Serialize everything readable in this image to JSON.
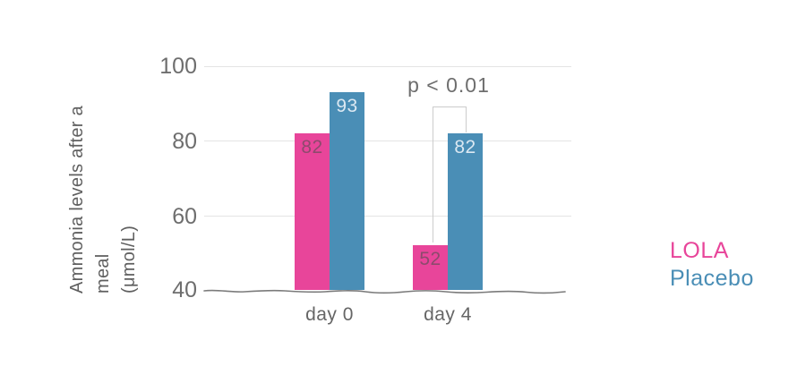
{
  "chart_data": {
    "type": "bar",
    "title": "",
    "categories": [
      "day 0",
      "day 4"
    ],
    "series": [
      {
        "name": "LOLA",
        "values": [
          82,
          52
        ],
        "color": "#e8459a",
        "value_label_color": "#8d4a6d"
      },
      {
        "name": "Placebo",
        "values": [
          93,
          82
        ],
        "color": "#4a8eb6",
        "value_label_color": "#dbe8f2"
      }
    ],
    "ylabel": "Ammonia levels after a meal (μmol/L)",
    "ylabel_lines": [
      "Ammonia levels after a meal",
      "(μmol/L)"
    ],
    "yticks": [
      "100",
      "80",
      "60",
      "40"
    ],
    "ylim": [
      40,
      100
    ],
    "grid": "horizontal-light",
    "legend_position": "right-middle",
    "annotation": {
      "text": "p < 0.01",
      "between": [
        "LOLA day 4",
        "Placebo day 4"
      ]
    },
    "colors": {
      "axis_text": "#6e6e6e",
      "y_title_text": "#5f5f5f",
      "gridline": "#e4e4e4",
      "baseline": "#7b7b7b",
      "bracket": "#cccccc"
    }
  }
}
